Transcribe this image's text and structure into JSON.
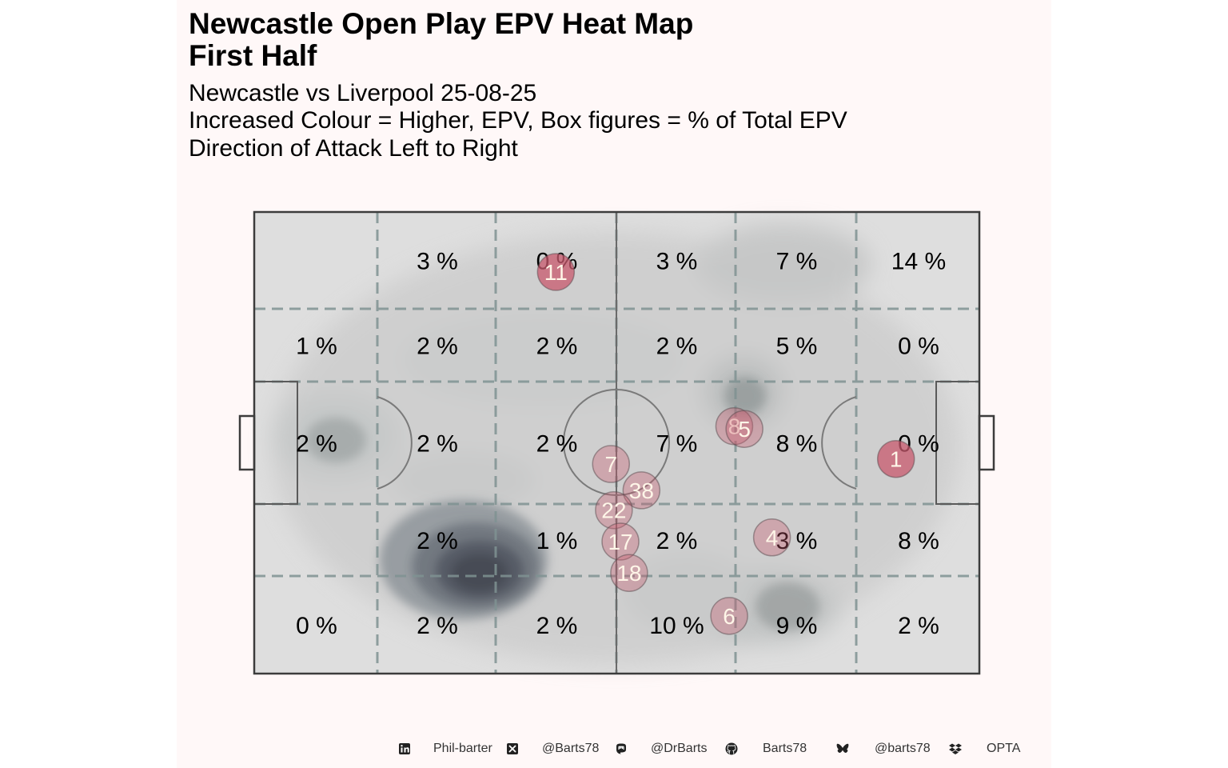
{
  "title_line1": "Newcastle Open Play EPV Heat Map",
  "title_line2": "First Half",
  "subtitle_line1": "Newcastle vs Liverpool 25-08-25",
  "subtitle_line2": "Increased Colour = Higher, EPV, Box figures = % of Total EPV",
  "subtitle_line3": "Direction of Attack Left to Right",
  "colors": {
    "panel_bg": "#fff8f8",
    "pitch_fill": "#dedede",
    "pitch_line": "#3c3c3c",
    "zone_dash": "#7f9292",
    "density_dark": "#4a4e56",
    "player_dot": "#c85a6e",
    "player_label": "#fff6e8"
  },
  "chart_data": {
    "type": "heatmap",
    "title": "Newcastle Open Play EPV Heat Map",
    "rows": [
      "top",
      "upper",
      "middle",
      "lower",
      "bottom"
    ],
    "columns": 6,
    "zone_labels": [
      [
        "",
        "3 %",
        "0 %",
        "3 %",
        "7 %",
        "14 %"
      ],
      [
        "1 %",
        "2 %",
        "2 %",
        "2 %",
        "5 %",
        "0 %"
      ],
      [
        "2 %",
        "2 %",
        "2 %",
        "7 %",
        "8 %",
        "0 %"
      ],
      [
        "",
        "2 %",
        "1 %",
        "2 %",
        "3 %",
        "8 %"
      ],
      [
        "0 %",
        "2 %",
        "2 %",
        "10 %",
        "9 %",
        "2 %"
      ]
    ],
    "players": [
      {
        "number": "11",
        "x": 41.6,
        "y": 87
      },
      {
        "number": "8",
        "x": 66.2,
        "y": 53.6
      },
      {
        "number": "5",
        "x": 67.6,
        "y": 53
      },
      {
        "number": "7",
        "x": 49.2,
        "y": 45.4
      },
      {
        "number": "38",
        "x": 53.4,
        "y": 39.7
      },
      {
        "number": "22",
        "x": 49.6,
        "y": 35.4
      },
      {
        "number": "17",
        "x": 50.5,
        "y": 28.6
      },
      {
        "number": "18",
        "x": 51.7,
        "y": 21.8
      },
      {
        "number": "4",
        "x": 71.4,
        "y": 29.5
      },
      {
        "number": "6",
        "x": 65.5,
        "y": 12.5
      },
      {
        "number": "1",
        "x": 88.5,
        "y": 46.5
      }
    ],
    "direction": "left-to-right"
  },
  "footer": {
    "linkedin_icon": "linkedin-icon",
    "linkedin": "Phil-barter",
    "x_icon": "x-twitter-icon",
    "x": "@Barts78",
    "mastodon_icon": "mastodon-icon",
    "mastodon": "@DrBarts",
    "github_icon": "github-icon",
    "github": "Barts78",
    "bluesky_icon": "bluesky-icon",
    "bluesky": "@barts78",
    "dropbox_icon": "dropbox-icon",
    "data_source": "OPTA"
  }
}
